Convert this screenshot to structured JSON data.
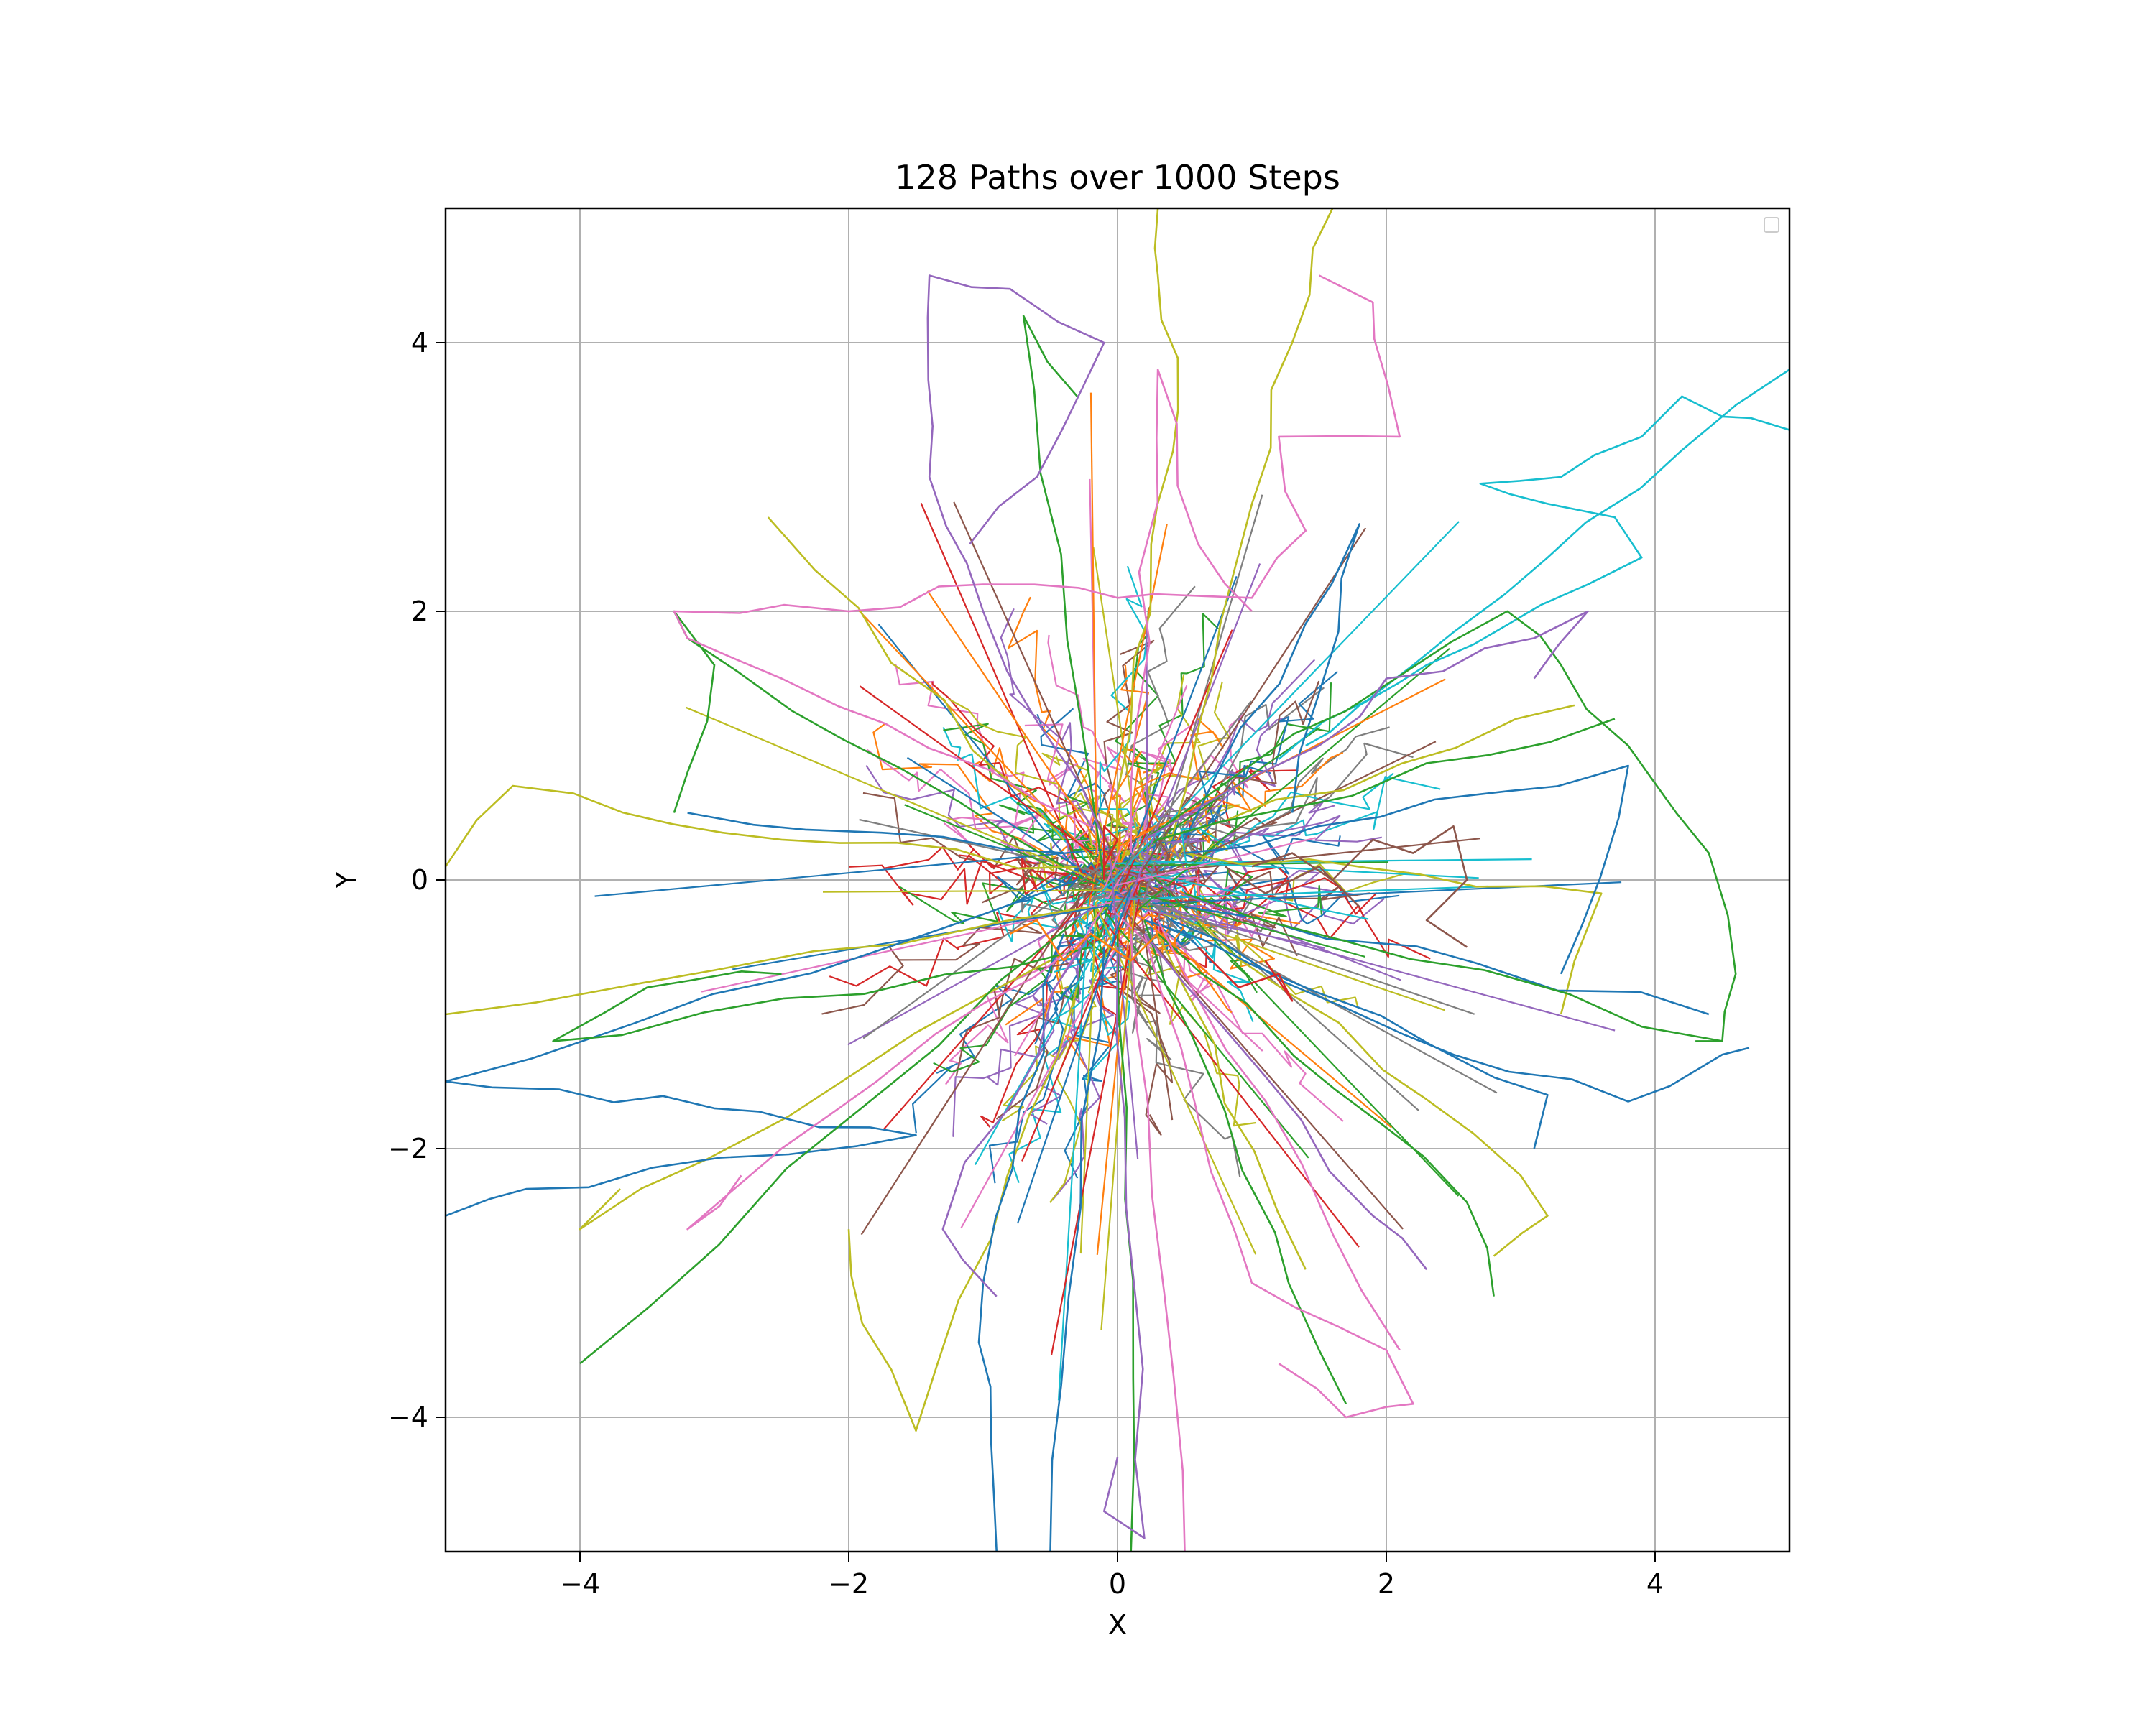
{
  "chart_data": {
    "type": "line",
    "title": "128 Paths over 1000 Steps",
    "xlabel": "X",
    "ylabel": "Y",
    "xlim": [
      -5,
      5
    ],
    "ylim": [
      -5,
      5
    ],
    "xticks": [
      -4,
      -2,
      0,
      2,
      4
    ],
    "yticks": [
      -4,
      -2,
      0,
      2,
      4
    ],
    "xtick_labels": [
      "−4",
      "−2",
      "0",
      "2",
      "4"
    ],
    "ytick_labels": [
      "−4",
      "−2",
      "0",
      "2",
      "4"
    ],
    "grid": true,
    "legend": "upper-right, empty",
    "colors": [
      "#1f77b4",
      "#ff7f0e",
      "#2ca02c",
      "#d62728",
      "#9467bd",
      "#8c564b",
      "#e377c2",
      "#7f7f7f",
      "#bcbd22",
      "#17becf"
    ],
    "series": [
      {
        "color": "#17becf",
        "points": [
          [
            1.4,
            1.0
          ],
          [
            1.8,
            1.3
          ],
          [
            2.3,
            1.6
          ],
          [
            2.9,
            1.9
          ],
          [
            3.5,
            2.2
          ],
          [
            3.9,
            2.4
          ],
          [
            3.7,
            2.7
          ],
          [
            3.2,
            2.8
          ],
          [
            2.7,
            2.95
          ],
          [
            3.3,
            3.0
          ],
          [
            3.9,
            3.3
          ],
          [
            4.2,
            3.6
          ],
          [
            4.5,
            3.45
          ],
          [
            5.0,
            3.35
          ]
        ]
      },
      {
        "color": "#17becf",
        "points": [
          [
            1.2,
            0.9
          ],
          [
            2.2,
            1.6
          ],
          [
            3.2,
            2.4
          ],
          [
            4.2,
            3.2
          ],
          [
            5.0,
            3.8
          ]
        ]
      },
      {
        "color": "#bcbd22",
        "points": [
          [
            0.4,
            0.3
          ],
          [
            0.7,
            1.5
          ],
          [
            1.0,
            2.8
          ],
          [
            1.3,
            4.0
          ],
          [
            1.6,
            5.0
          ]
        ]
      },
      {
        "color": "#bcbd22",
        "points": [
          [
            0.0,
            0.2
          ],
          [
            0.25,
            2.5
          ],
          [
            0.45,
            3.5
          ],
          [
            0.3,
            4.5
          ],
          [
            0.3,
            5.0
          ]
        ]
      },
      {
        "color": "#bcbd22",
        "points": [
          [
            -0.3,
            0.1
          ],
          [
            -2.5,
            0.3
          ],
          [
            -4.5,
            0.7
          ],
          [
            -5.0,
            0.1
          ]
        ]
      },
      {
        "color": "#bcbd22",
        "points": [
          [
            -0.2,
            -0.2
          ],
          [
            -5.0,
            -1.0
          ]
        ]
      },
      {
        "color": "#bcbd22",
        "points": [
          [
            -0.4,
            0.3
          ],
          [
            -2.6,
            2.7
          ]
        ]
      },
      {
        "color": "#bcbd22",
        "points": [
          [
            -0.3,
            -0.8
          ],
          [
            -1.5,
            -4.1
          ],
          [
            -1.9,
            -3.3
          ],
          [
            -2.0,
            -2.6
          ]
        ]
      },
      {
        "color": "#bcbd22",
        "points": [
          [
            0.3,
            -0.4
          ],
          [
            1.4,
            -2.9
          ]
        ]
      },
      {
        "color": "#bcbd22",
        "points": [
          [
            -0.5,
            -0.6
          ],
          [
            -4.0,
            -2.6
          ],
          [
            -3.7,
            -2.3
          ]
        ]
      },
      {
        "color": "#bcbd22",
        "points": [
          [
            0.6,
            -0.3
          ],
          [
            3.0,
            -2.2
          ],
          [
            3.2,
            -2.5
          ],
          [
            2.8,
            -2.8
          ]
        ]
      },
      {
        "color": "#bcbd22",
        "points": [
          [
            0.5,
            0.2
          ],
          [
            3.6,
            -0.1
          ],
          [
            3.3,
            -1.0
          ]
        ]
      },
      {
        "color": "#bcbd22",
        "points": [
          [
            0.3,
            0.3
          ],
          [
            3.4,
            1.3
          ]
        ]
      },
      {
        "color": "#1f77b4",
        "points": [
          [
            0.5,
            0.3
          ],
          [
            1.8,
            2.65
          ],
          [
            1.3,
            0.5
          ]
        ]
      },
      {
        "color": "#1f77b4",
        "points": [
          [
            -0.3,
            0.0
          ],
          [
            -5.0,
            -1.5
          ],
          [
            -3.0,
            -1.7
          ],
          [
            -1.5,
            -1.9
          ],
          [
            -4.4,
            -2.3
          ],
          [
            -5.0,
            -2.5
          ]
        ]
      },
      {
        "color": "#1f77b4",
        "points": [
          [
            -0.4,
            0.2
          ],
          [
            -3.2,
            0.5
          ]
        ]
      },
      {
        "color": "#1f77b4",
        "points": [
          [
            0.4,
            -0.3
          ],
          [
            2.5,
            -1.3
          ],
          [
            3.8,
            -1.65
          ],
          [
            4.5,
            -1.3
          ],
          [
            4.7,
            -1.25
          ]
        ]
      },
      {
        "color": "#1f77b4",
        "points": [
          [
            0.5,
            0.2
          ],
          [
            3.8,
            0.85
          ],
          [
            3.3,
            -0.7
          ]
        ]
      },
      {
        "color": "#1f77b4",
        "points": [
          [
            0.5,
            -0.2
          ],
          [
            4.4,
            -1.0
          ]
        ]
      },
      {
        "color": "#1f77b4",
        "points": [
          [
            -0.1,
            -0.5
          ],
          [
            -0.5,
            -5.0
          ]
        ]
      },
      {
        "color": "#1f77b4",
        "points": [
          [
            -0.4,
            -0.4
          ],
          [
            -1.0,
            -3.0
          ],
          [
            -0.9,
            -5.0
          ]
        ]
      },
      {
        "color": "#1f77b4",
        "points": [
          [
            0.2,
            -0.3
          ],
          [
            3.2,
            -1.6
          ],
          [
            3.1,
            -2.0
          ]
        ]
      },
      {
        "color": "#2ca02c",
        "points": [
          [
            -0.1,
            0.0
          ],
          [
            -0.7,
            4.2
          ],
          [
            -0.3,
            3.6
          ]
        ]
      },
      {
        "color": "#2ca02c",
        "points": [
          [
            0.2,
            0.3
          ],
          [
            2.9,
            2.0
          ],
          [
            3.3,
            1.6
          ],
          [
            3.8,
            1.0
          ],
          [
            4.4,
            0.2
          ],
          [
            4.6,
            -0.7
          ],
          [
            4.5,
            -1.2
          ],
          [
            4.3,
            -1.2
          ]
        ]
      },
      {
        "color": "#2ca02c",
        "points": [
          [
            -0.3,
            -0.3
          ],
          [
            -4.0,
            -3.6
          ]
        ]
      },
      {
        "color": "#2ca02c",
        "points": [
          [
            0.0,
            -0.4
          ],
          [
            0.1,
            -5.0
          ]
        ]
      },
      {
        "color": "#2ca02c",
        "points": [
          [
            0.5,
            -0.1
          ],
          [
            4.5,
            -1.2
          ]
        ]
      },
      {
        "color": "#2ca02c",
        "points": [
          [
            0.3,
            0.3
          ],
          [
            3.7,
            1.2
          ]
        ]
      },
      {
        "color": "#2ca02c",
        "points": [
          [
            -0.4,
            0.1
          ],
          [
            -3.2,
            1.8
          ],
          [
            -3.3,
            2.0
          ],
          [
            -3.0,
            1.6
          ],
          [
            -3.2,
            0.8
          ],
          [
            -3.3,
            0.5
          ]
        ]
      },
      {
        "color": "#2ca02c",
        "points": [
          [
            -0.2,
            -0.5
          ],
          [
            -4.2,
            -1.2
          ],
          [
            -3.5,
            -0.8
          ],
          [
            -2.5,
            -0.7
          ]
        ]
      },
      {
        "color": "#2ca02c",
        "points": [
          [
            0.2,
            -0.3
          ],
          [
            1.5,
            -3.5
          ],
          [
            1.7,
            -3.9
          ]
        ]
      },
      {
        "color": "#2ca02c",
        "points": [
          [
            0.3,
            -0.4
          ],
          [
            2.6,
            -2.4
          ],
          [
            2.8,
            -3.1
          ]
        ]
      },
      {
        "color": "#e377c2",
        "points": [
          [
            -0.2,
            0.4
          ],
          [
            -2.5,
            1.5
          ],
          [
            -3.2,
            1.8
          ],
          [
            -3.3,
            2.0
          ],
          [
            -2.0,
            2.0
          ],
          [
            -1.0,
            2.2
          ],
          [
            0.0,
            2.1
          ],
          [
            1.0,
            2.1
          ],
          [
            1.4,
            2.6
          ],
          [
            1.2,
            3.3
          ],
          [
            2.1,
            3.3
          ],
          [
            1.9,
            4.3
          ],
          [
            1.5,
            4.5
          ]
        ]
      },
      {
        "color": "#e377c2",
        "points": [
          [
            0.1,
            0.2
          ],
          [
            0.3,
            3.8
          ],
          [
            0.6,
            2.5
          ],
          [
            1.0,
            2.0
          ]
        ]
      },
      {
        "color": "#e377c2",
        "points": [
          [
            0.2,
            -0.4
          ],
          [
            1.0,
            -3.0
          ],
          [
            2.0,
            -3.5
          ],
          [
            2.2,
            -3.9
          ],
          [
            1.7,
            -4.0
          ],
          [
            1.2,
            -3.6
          ]
        ]
      },
      {
        "color": "#e377c2",
        "points": [
          [
            0.1,
            -0.4
          ],
          [
            0.5,
            -5.0
          ]
        ]
      },
      {
        "color": "#e377c2",
        "points": [
          [
            0.3,
            -0.3
          ],
          [
            2.1,
            -3.5
          ]
        ]
      },
      {
        "color": "#e377c2",
        "points": [
          [
            -0.2,
            -0.4
          ],
          [
            -2.5,
            -2.0
          ],
          [
            -3.2,
            -2.6
          ],
          [
            -2.8,
            -2.2
          ]
        ]
      },
      {
        "color": "#9467bd",
        "points": [
          [
            -0.1,
            0.3
          ],
          [
            -1.0,
            2.0
          ],
          [
            -1.4,
            3.0
          ],
          [
            -1.4,
            4.5
          ],
          [
            -0.8,
            4.4
          ],
          [
            -0.1,
            4.0
          ],
          [
            -0.6,
            3.0
          ],
          [
            -1.1,
            2.5
          ]
        ]
      },
      {
        "color": "#9467bd",
        "points": [
          [
            0.2,
            0.3
          ],
          [
            1.5,
            1.0
          ],
          [
            2.0,
            1.5
          ],
          [
            3.1,
            1.8
          ],
          [
            3.5,
            2.0
          ],
          [
            3.1,
            1.5
          ]
        ]
      },
      {
        "color": "#9467bd",
        "points": [
          [
            0.2,
            -0.4
          ],
          [
            1.9,
            -2.5
          ],
          [
            2.3,
            -2.9
          ]
        ]
      },
      {
        "color": "#9467bd",
        "points": [
          [
            0.0,
            -0.5
          ],
          [
            0.2,
            -4.9
          ],
          [
            -0.1,
            -4.7
          ],
          [
            0.0,
            -4.3
          ]
        ]
      },
      {
        "color": "#9467bd",
        "points": [
          [
            -0.2,
            -0.4
          ],
          [
            -1.3,
            -2.6
          ],
          [
            -0.9,
            -3.1
          ]
        ]
      },
      {
        "color": "#d62728",
        "points": [
          [
            -0.1,
            0.0
          ],
          [
            -0.1,
            0.4
          ],
          [
            0.0,
            0.3
          ],
          [
            -0.1,
            0.1
          ]
        ]
      },
      {
        "color": "#d62728",
        "points": [
          [
            0.6,
            -0.5
          ],
          [
            0.9,
            -0.8
          ],
          [
            1.2,
            -0.7
          ],
          [
            1.3,
            -0.9
          ],
          [
            1.1,
            -0.6
          ]
        ]
      },
      {
        "color": "#ff7f0e",
        "points": [
          [
            -0.8,
            -0.4
          ],
          [
            -0.6,
            -0.3
          ],
          [
            -0.4,
            -0.6
          ],
          [
            -0.2,
            -0.4
          ],
          [
            0.1,
            -0.6
          ],
          [
            0.3,
            -0.4
          ]
        ]
      },
      {
        "color": "#8c564b",
        "points": [
          [
            1.0,
            0.1
          ],
          [
            1.3,
            0.2
          ],
          [
            1.6,
            0.0
          ],
          [
            1.9,
            0.3
          ],
          [
            2.2,
            0.2
          ],
          [
            2.5,
            0.4
          ],
          [
            2.6,
            0.0
          ],
          [
            2.3,
            -0.3
          ],
          [
            2.6,
            -0.5
          ]
        ]
      },
      {
        "color": "#8c564b",
        "points": [
          [
            0.8,
            0.1
          ],
          [
            1.1,
            -0.1
          ],
          [
            1.5,
            0.1
          ],
          [
            1.8,
            -0.2
          ]
        ]
      }
    ]
  }
}
